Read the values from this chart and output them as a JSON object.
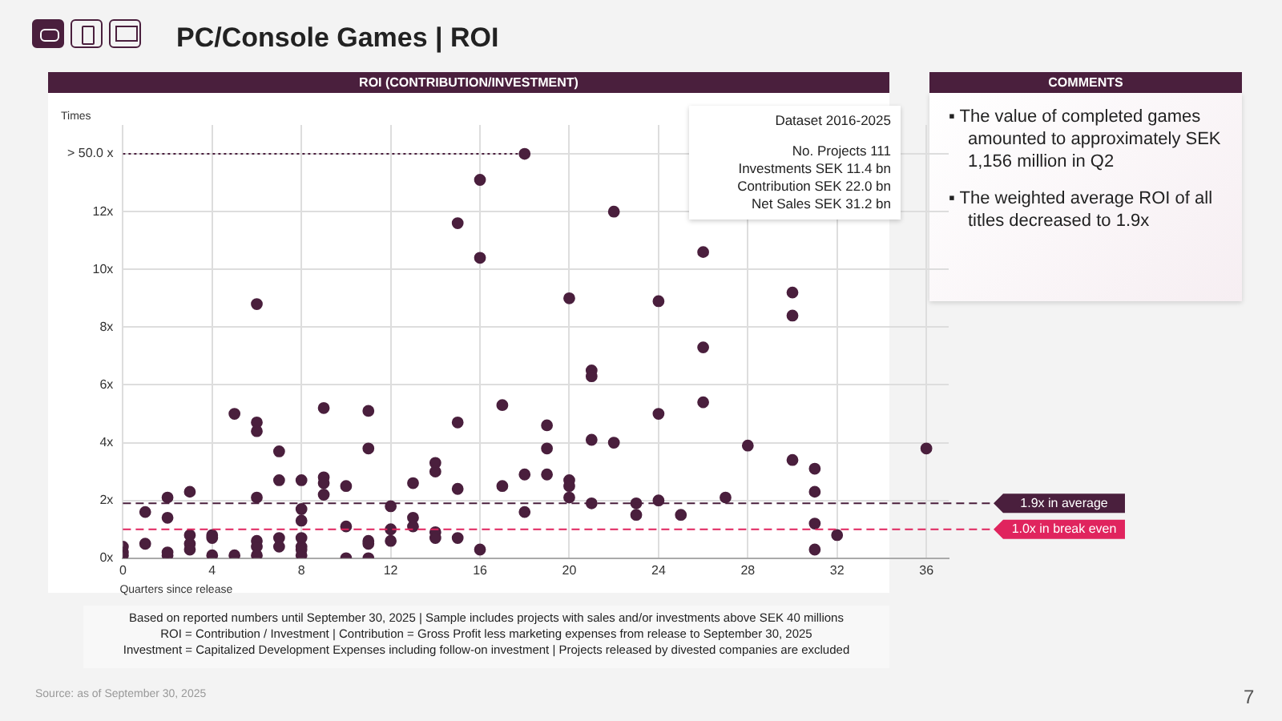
{
  "chart_data": {
    "type": "scatter",
    "title": "PC/Console Games | ROI",
    "subtitle": "ROI (CONTRIBUTION/INVESTMENT)",
    "xlabel": "Quarters since release",
    "ylabel": "Times",
    "xlim": [
      0,
      37
    ],
    "xticks": [
      0,
      4,
      8,
      12,
      16,
      20,
      24,
      28,
      32,
      36
    ],
    "ylim": [
      0,
      15
    ],
    "yticks": [
      {
        "value": 0,
        "label": "0x"
      },
      {
        "value": 2,
        "label": "2x"
      },
      {
        "value": 4,
        "label": "4x"
      },
      {
        "value": 6,
        "label": "6x"
      },
      {
        "value": 8,
        "label": "8x"
      },
      {
        "value": 10,
        "label": "10x"
      },
      {
        "value": 12,
        "label": "12x"
      },
      {
        "value": 14,
        "label": "> 50.0 x"
      }
    ],
    "grid": true,
    "legend": false,
    "marker": "circle",
    "series": [
      {
        "color": "#4a1f3d",
        "x": [
          0,
          0,
          0,
          1,
          1,
          2,
          2,
          2,
          2,
          3,
          3,
          3,
          3,
          4,
          4,
          4,
          5,
          5,
          6,
          6,
          6,
          6,
          6,
          6,
          6,
          7,
          7,
          7,
          7,
          8,
          8,
          8,
          8,
          8,
          8,
          8,
          9,
          9,
          9,
          9,
          10,
          10,
          10,
          11,
          11,
          11,
          11,
          11,
          12,
          12,
          12,
          13,
          13,
          13,
          14,
          14,
          14,
          14,
          15,
          15,
          15,
          15,
          16,
          16,
          16,
          17,
          17,
          18,
          18,
          18,
          19,
          19,
          19,
          20,
          20,
          20,
          20,
          21,
          21,
          21,
          21,
          22,
          22,
          23,
          23,
          24,
          24,
          24,
          25,
          26,
          26,
          26,
          27,
          28,
          30,
          30,
          30,
          31,
          31,
          31,
          31,
          32,
          36
        ],
        "values": [
          0.4,
          0.2,
          0.1,
          1.6,
          0.5,
          2.1,
          1.4,
          0.2,
          0.1,
          2.3,
          0.8,
          0.5,
          0.3,
          0.8,
          0.7,
          0.1,
          5.0,
          0.1,
          8.8,
          4.7,
          4.4,
          2.1,
          0.6,
          0.4,
          0.1,
          3.7,
          2.7,
          0.7,
          0.4,
          2.7,
          1.7,
          1.3,
          0.7,
          0.4,
          0.3,
          0.1,
          5.2,
          2.8,
          2.6,
          2.2,
          2.5,
          1.1,
          0.0,
          5.1,
          3.8,
          0.6,
          0.5,
          0.0,
          1.8,
          1.0,
          0.6,
          2.6,
          1.4,
          1.1,
          3.3,
          3.0,
          0.9,
          0.7,
          11.6,
          4.7,
          2.4,
          0.7,
          13.1,
          10.4,
          0.3,
          5.3,
          2.5,
          14,
          2.9,
          1.6,
          4.6,
          3.8,
          2.9,
          9.0,
          2.7,
          2.5,
          2.1,
          6.5,
          6.3,
          4.1,
          1.9,
          12.0,
          4.0,
          1.9,
          1.5,
          8.9,
          5.0,
          2.0,
          1.5,
          10.6,
          7.3,
          5.4,
          2.1,
          3.9,
          9.2,
          8.4,
          3.4,
          3.1,
          2.3,
          1.2,
          0.3,
          0.8,
          3.8
        ]
      },
      {
        "type": "line",
        "color": "#4a1f3d",
        "marker": "none",
        "line_style": "dotted",
        "x": [
          0,
          18
        ],
        "values": [
          14,
          14
        ]
      }
    ],
    "ref_lines": [
      {
        "axis": "y",
        "value": 1.9,
        "label": "1.9x in average",
        "color": "#4a1f3d",
        "line_style": "dashed"
      },
      {
        "axis": "y",
        "value": 1.0,
        "label": "1.0x in break even",
        "color": "#e0245e",
        "line_style": "dashed"
      }
    ],
    "annotations": [
      "COMMENTS",
      "▪ The value of completed games amounted to approximately SEK 1,156 million in Q2",
      "▪ The weighted average ROI of all titles decreased to 1.9x",
      "Dataset 2016-2025",
      "No. Projects 111",
      "Investments SEK 11.4 bn",
      "Contribution SEK 22.0 bn",
      "Net Sales SEK 31.2 bn",
      "Based on reported numbers until September 30, 2025 | Sample includes projects with sales and/or investments above SEK 40 millions",
      "ROI = Contribution / Investment  | Contribution = Gross Profit less marketing expenses from release to September 30, 2025",
      "Investment = Capitalized Development Expenses including follow-on investment | Projects released by divested companies are excluded",
      "Source: as of September 30, 2025",
      "7"
    ]
  }
}
